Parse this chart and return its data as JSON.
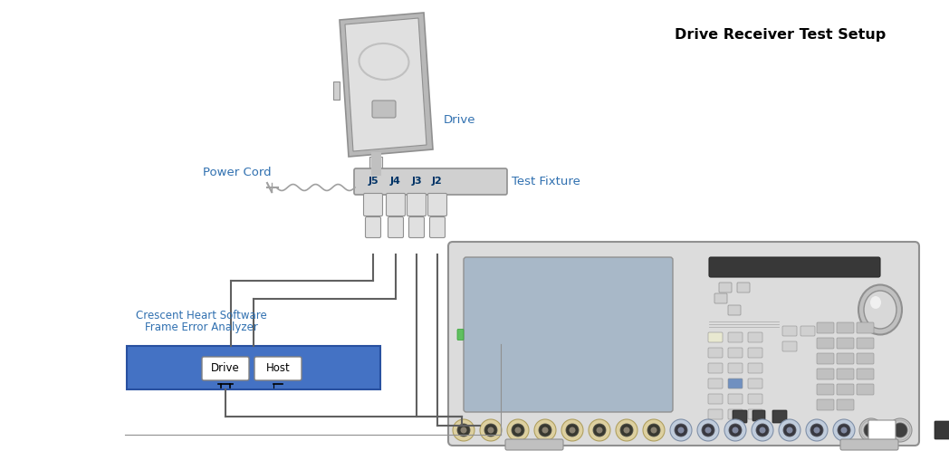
{
  "title": "Drive Receiver Test Setup",
  "bg_color": "#ffffff",
  "label_color": "#3070b0",
  "drive_label": "Drive",
  "test_fixture_label": "Test Fixture",
  "power_cord_label": "Power Cord",
  "crescent_label1": "Crescent Heart Software",
  "crescent_label2": "Frame Error Analyzer",
  "connector_labels": [
    "J5",
    "J4",
    "J3",
    "J2"
  ],
  "connector_label_color": "#003366",
  "gray_body": "#b8b8b8",
  "gray_light": "#d0d0d0",
  "gray_lighter": "#e0e0e0",
  "gray_dark": "#909090",
  "gray_medium": "#c0c0c0",
  "instrument_body": "#dcdcdc",
  "screen_color": "#a8b8c8",
  "cable_color": "#606060",
  "power_cord_color": "#a0a0a0",
  "analyzer_blue": "#4472c4"
}
